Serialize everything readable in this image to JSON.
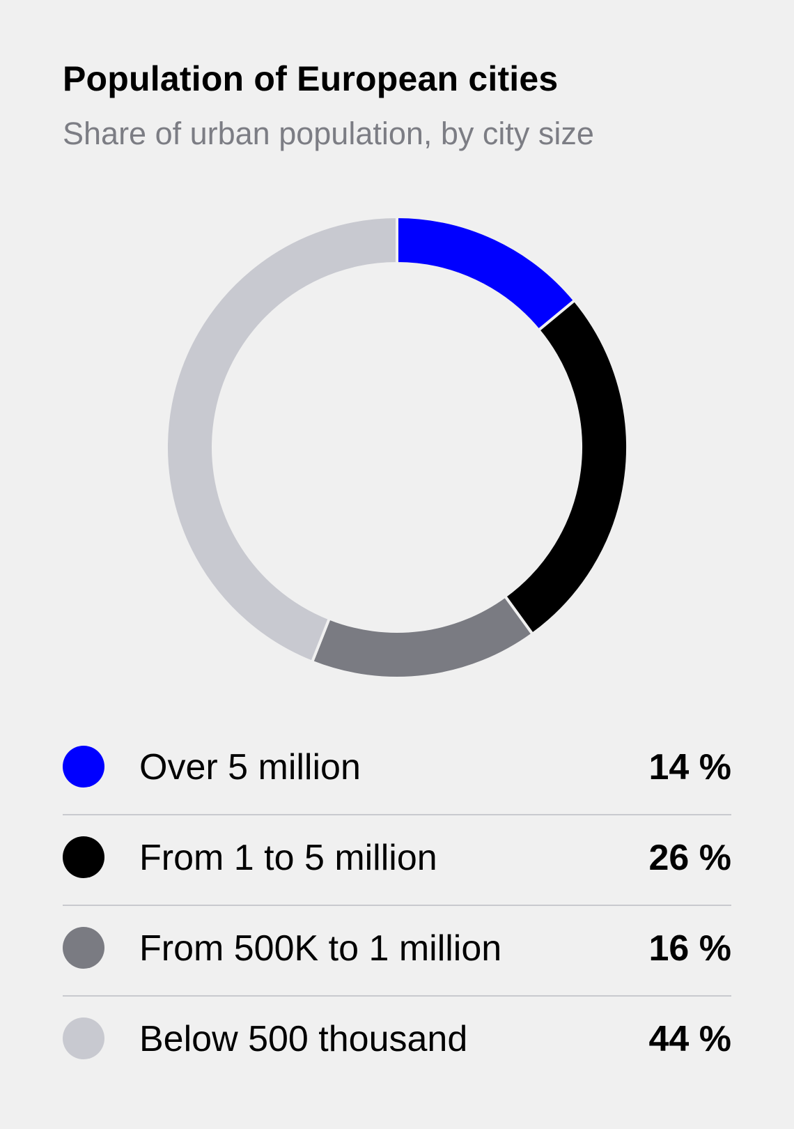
{
  "chart_data": {
    "type": "pie",
    "title": "Population of European cities",
    "subtitle": "Share of urban population, by city size",
    "categories": [
      "Over 5 million",
      "From 1 to 5 million",
      "From 500K to 1 million",
      "Below 500 thousand"
    ],
    "values": [
      14,
      26,
      16,
      44
    ],
    "value_labels": [
      "14 %",
      "26 %",
      "16 %",
      "44 %"
    ],
    "colors": [
      "#0000ff",
      "#000000",
      "#7a7b82",
      "#c8c9d0"
    ],
    "legend_placement": "bottom",
    "style": "donut"
  }
}
